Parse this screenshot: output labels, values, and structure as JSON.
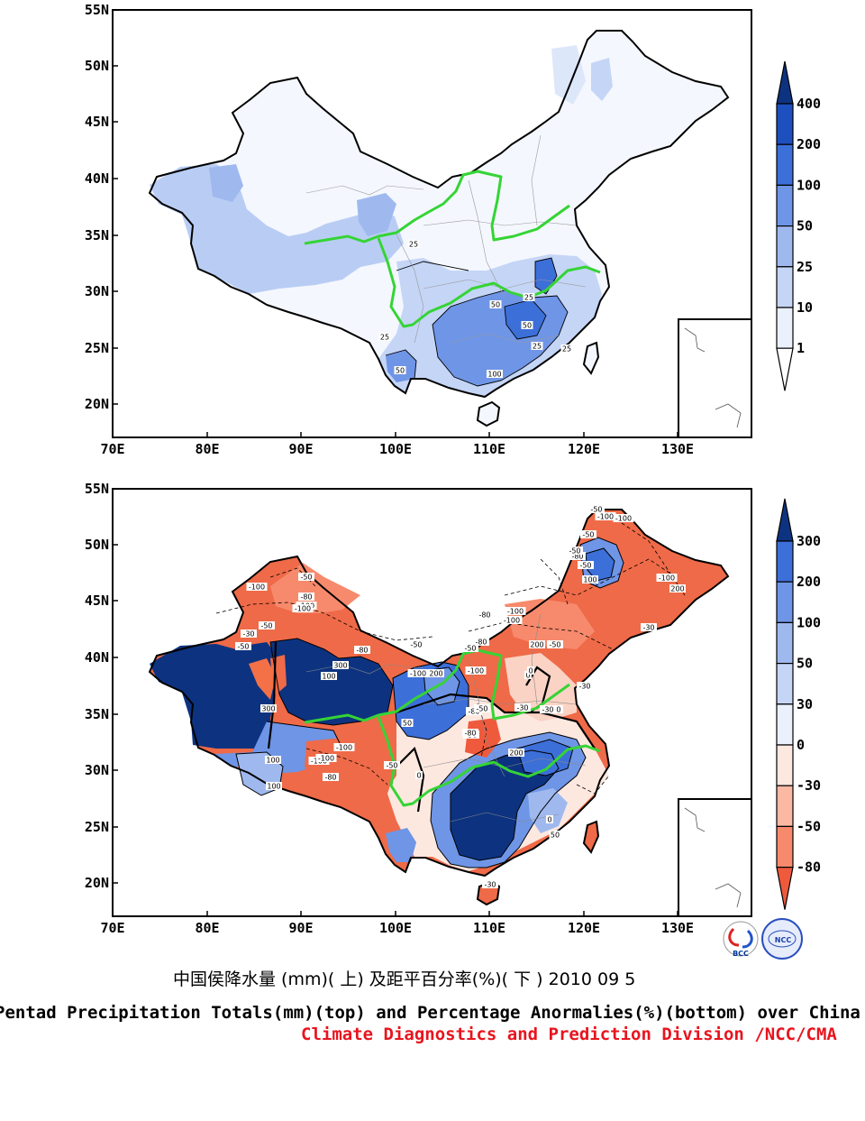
{
  "caption": {
    "chinese": "中国侯降水量 (mm)( 上) 及距平百分率(%)( 下 ) 2010 09 5",
    "english": "Pentad Precipitation Totals(mm)(top) and Percentage Anormalies(%)(bottom) over China",
    "division": "Climate Diagnostics and Prediction Division /NCC/CMA"
  },
  "axes": {
    "lat_labels": [
      "20N",
      "25N",
      "30N",
      "35N",
      "40N",
      "45N",
      "50N",
      "55N"
    ],
    "lon_labels": [
      "70E",
      "80E",
      "90E",
      "100E",
      "110E",
      "120E",
      "130E"
    ]
  },
  "top_map": {
    "colorbar_labels": [
      "1",
      "10",
      "25",
      "50",
      "100",
      "200",
      "400"
    ],
    "colors": [
      "#ffffff",
      "#eaf0fc",
      "#c5d5f6",
      "#9fb9ef",
      "#6f95e6",
      "#3d6fd9",
      "#1d4fbf",
      "#0d3380"
    ],
    "contour_labels": [
      "25",
      "50",
      "25",
      "50",
      "25",
      "100",
      "25",
      "25",
      "50"
    ]
  },
  "bottom_map": {
    "colorbar_labels": [
      "-80",
      "-50",
      "-30",
      "0",
      "30",
      "50",
      "100",
      "200",
      "300"
    ],
    "colors": [
      "#ef5a3c",
      "#f78a6c",
      "#fbb9a4",
      "#fde8e0",
      "#eaf0fc",
      "#c5d5f6",
      "#9fb9ef",
      "#6f95e6",
      "#3d6fd9",
      "#0d3380"
    ],
    "contour_labels": [
      "-100",
      "-100",
      "-80",
      "-50",
      "-50",
      "-100",
      "-80",
      "-100",
      "-50",
      "-50",
      "-30",
      "-100",
      "-100",
      "-80",
      "-100",
      "-100",
      "-80",
      "-50",
      "-50",
      "200",
      "200",
      "300",
      "300",
      "100",
      "100",
      "-50",
      "-80",
      "-30",
      "-50",
      "-50",
      "-100",
      "-100",
      "-80",
      "-50",
      "200",
      "100",
      "50",
      "-30",
      "0",
      "0",
      "0",
      "-30",
      "-50",
      "50",
      "100",
      "-100",
      "-100",
      "-80",
      "-80",
      "-100",
      "200",
      "-50",
      "-30",
      "0",
      "-30",
      "-30",
      "-50"
    ]
  },
  "logos": {
    "bcc": "BCC",
    "ncc": "NCC"
  }
}
